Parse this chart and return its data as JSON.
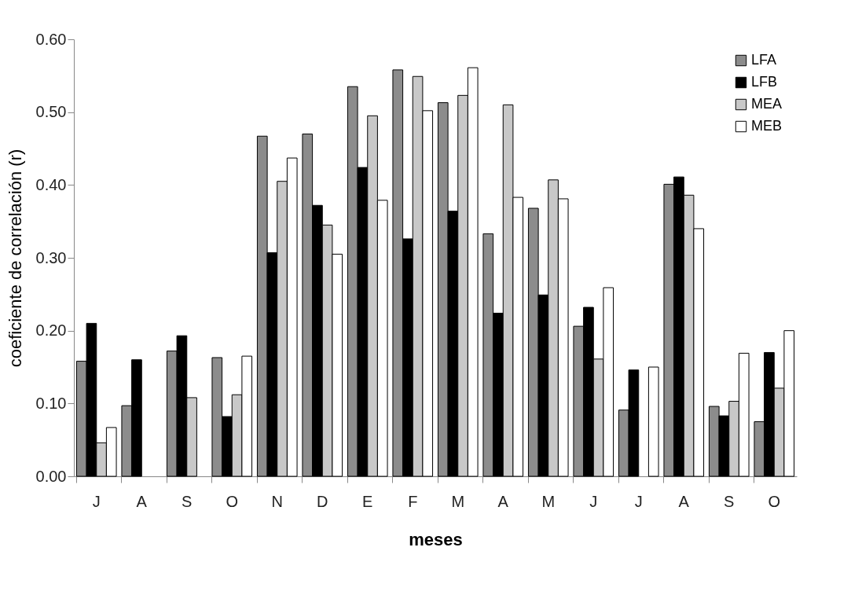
{
  "chart_data": {
    "type": "bar",
    "xlabel": "meses",
    "ylabel": "coeficiente de correlación (r)",
    "categories": [
      "J",
      "A",
      "S",
      "O",
      "N",
      "D",
      "E",
      "F",
      "M",
      "A",
      "M",
      "J",
      "J",
      "A",
      "S",
      "O"
    ],
    "series": [
      {
        "name": "LFA",
        "color": "#8c8c8c",
        "values": [
          0.158,
          0.097,
          0.172,
          0.163,
          0.467,
          0.47,
          0.535,
          0.558,
          0.513,
          0.333,
          0.368,
          0.206,
          0.091,
          0.401,
          0.096,
          0.075
        ]
      },
      {
        "name": "LFB",
        "color": "#000000",
        "values": [
          0.21,
          0.16,
          0.193,
          0.082,
          0.307,
          0.372,
          0.424,
          0.326,
          0.364,
          0.224,
          0.249,
          0.232,
          0.146,
          0.411,
          0.083,
          0.17
        ]
      },
      {
        "name": "MEA",
        "color": "#c8c8c8",
        "values": [
          0.046,
          null,
          0.108,
          0.112,
          0.405,
          0.345,
          0.495,
          0.549,
          0.523,
          0.51,
          0.407,
          0.161,
          null,
          0.386,
          0.103,
          0.121
        ]
      },
      {
        "name": "MEB",
        "color": "#ffffff",
        "values": [
          0.067,
          null,
          null,
          0.165,
          0.437,
          0.305,
          0.379,
          0.502,
          0.561,
          0.383,
          0.381,
          0.259,
          0.15,
          0.34,
          0.169,
          0.2
        ]
      }
    ],
    "ylim": [
      0,
      0.6
    ],
    "yticks": [
      {
        "value": 0,
        "label": "0.00"
      },
      {
        "value": 0.1,
        "label": "0.10"
      },
      {
        "value": 0.2,
        "label": "0.20"
      },
      {
        "value": 0.3,
        "label": "0.30"
      },
      {
        "value": 0.4,
        "label": "0.40"
      },
      {
        "value": 0.5,
        "label": "0.50"
      },
      {
        "value": 0.6,
        "label": "0.60"
      }
    ],
    "legend": "top right",
    "grid": false
  }
}
